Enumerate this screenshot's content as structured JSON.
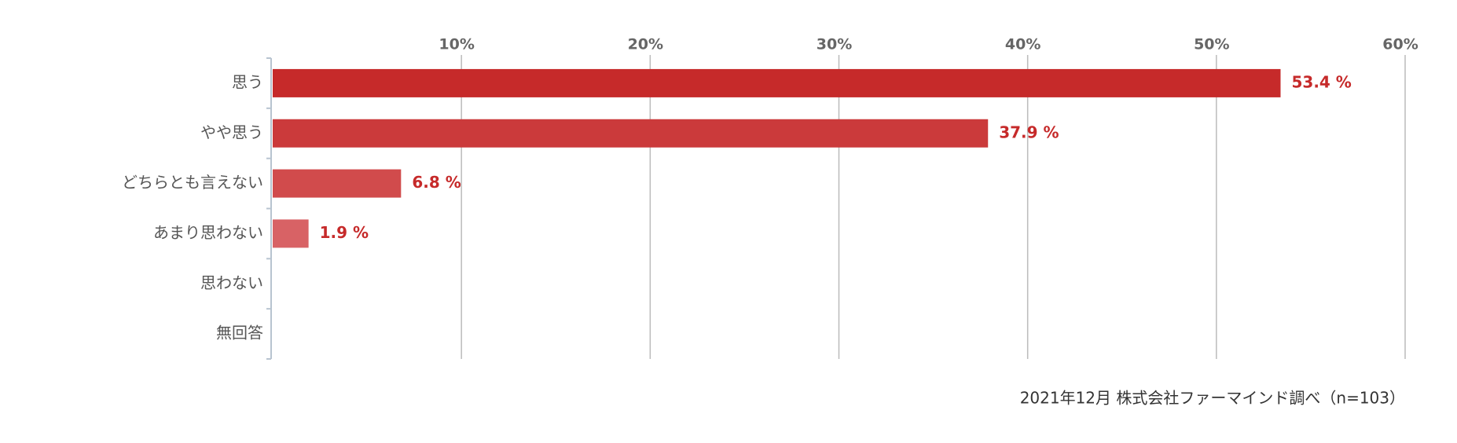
{
  "chart_data": {
    "type": "barh",
    "categories": [
      "思う",
      "やや思う",
      "どちらとも言えない",
      "あまり思わない",
      "思わない",
      "無回答"
    ],
    "values": [
      53.4,
      37.9,
      6.8,
      1.9,
      0,
      0
    ],
    "value_labels": [
      "53.4 %",
      "37.9 %",
      "6.8 %",
      "1.9 %",
      null,
      null
    ],
    "colors": [
      "#c62a2a",
      "#cb3a3b",
      "#d14b4c",
      "#d86265",
      "#dd7477",
      "#e08589"
    ],
    "xlim": [
      0,
      60
    ],
    "xticks": [
      {
        "value": 10,
        "label": "10%"
      },
      {
        "value": 20,
        "label": "20%"
      },
      {
        "value": 30,
        "label": "30%"
      },
      {
        "value": 40,
        "label": "40%"
      },
      {
        "value": 50,
        "label": "50%"
      },
      {
        "value": 60,
        "label": "60%"
      }
    ],
    "grid": true,
    "note": "2021年12月 株式会社ファーマインド調べ（n=103）"
  }
}
